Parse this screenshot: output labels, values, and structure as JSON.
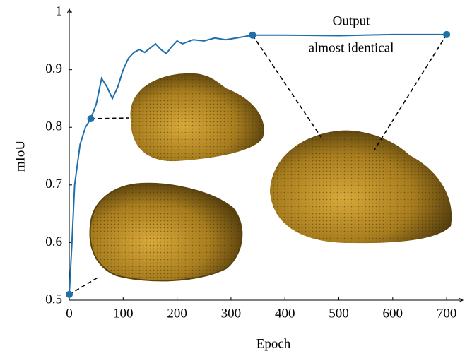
{
  "chart_data": {
    "type": "line",
    "x_label": "Epoch",
    "y_label": "mIoU",
    "annotations": [
      "Output",
      "almost identical"
    ],
    "xlim": [
      0,
      730
    ],
    "ylim": [
      0.5,
      1.005
    ],
    "xticks": [
      0,
      100,
      200,
      300,
      400,
      500,
      600,
      700
    ],
    "yticks": [
      0.5,
      0.6,
      0.7,
      0.8,
      0.9,
      1
    ],
    "series": [
      {
        "color": "#1f6fa8",
        "x": [
          0,
          5,
          10,
          20,
          30,
          40,
          50,
          60,
          70,
          80,
          90,
          100,
          110,
          120,
          130,
          140,
          160,
          170,
          180,
          190,
          200,
          210,
          230,
          250,
          270,
          290,
          310,
          340,
          400,
          500,
          600,
          700
        ],
        "values": [
          0.51,
          0.6,
          0.7,
          0.77,
          0.8,
          0.815,
          0.84,
          0.885,
          0.87,
          0.85,
          0.87,
          0.9,
          0.92,
          0.93,
          0.935,
          0.93,
          0.945,
          0.935,
          0.928,
          0.94,
          0.95,
          0.945,
          0.952,
          0.95,
          0.955,
          0.952,
          0.955,
          0.96,
          0.96,
          0.959,
          0.961,
          0.961
        ]
      },
      {
        "color": "#1f6fa8",
        "x": [
          0,
          40,
          340,
          700
        ],
        "values": [
          0.51,
          0.815,
          0.96,
          0.961
        ]
      }
    ]
  }
}
